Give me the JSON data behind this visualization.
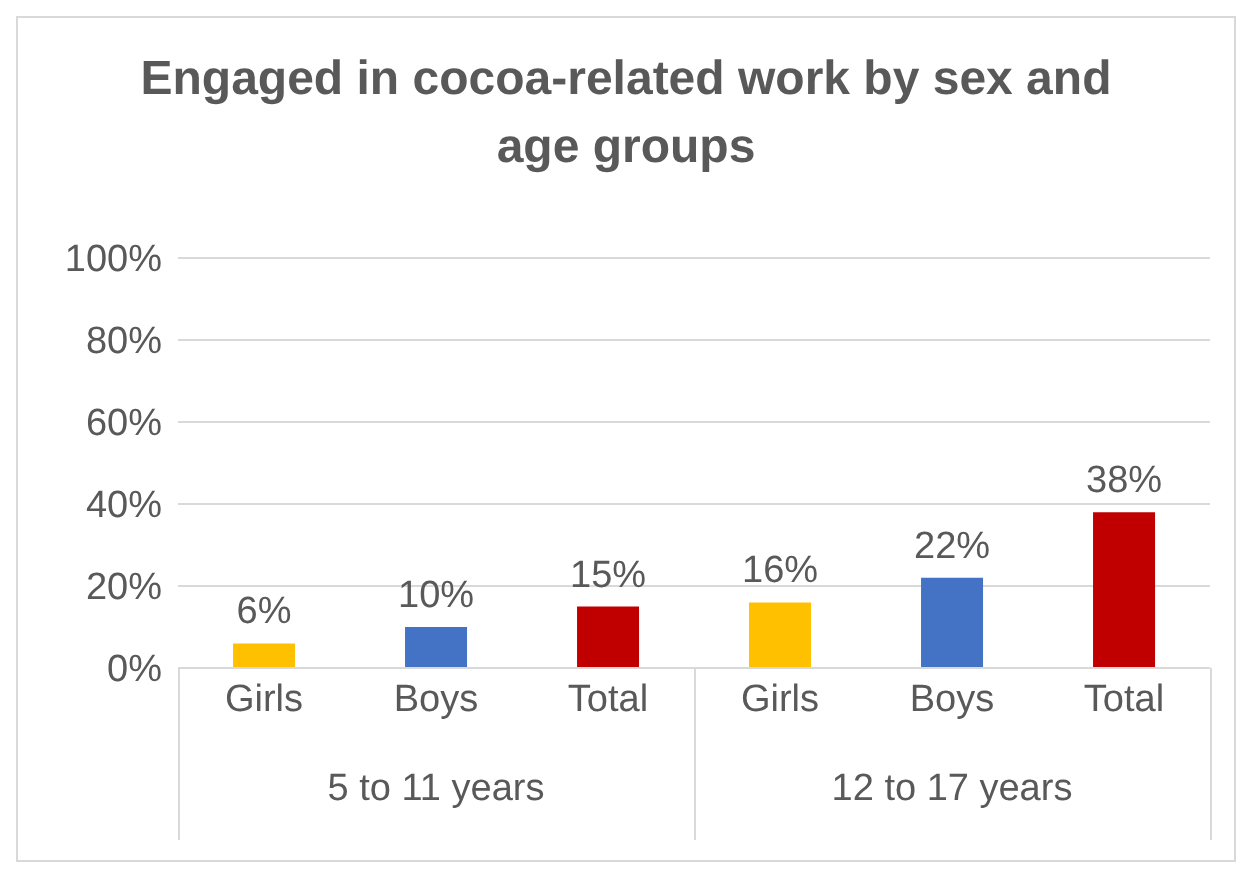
{
  "chart_data": {
    "type": "bar",
    "title": "Engaged in cocoa-related work by sex and age groups",
    "categories": [
      "Girls",
      "Boys",
      "Total",
      "Girls",
      "Boys",
      "Total"
    ],
    "values": [
      6,
      10,
      15,
      16,
      22,
      38
    ],
    "colors": [
      "#ffc000",
      "#4472c4",
      "#c00000",
      "#ffc000",
      "#4472c4",
      "#c00000"
    ],
    "value_labels": [
      "6%",
      "10%",
      "15%",
      "16%",
      "22%",
      "38%"
    ],
    "ylim": [
      0,
      100
    ],
    "yticks": [
      {
        "value": 0,
        "label": "0%"
      },
      {
        "value": 20,
        "label": "20%"
      },
      {
        "value": 40,
        "label": "40%"
      },
      {
        "value": 60,
        "label": "60%"
      },
      {
        "value": 80,
        "label": "80%"
      },
      {
        "value": 100,
        "label": "100%"
      }
    ],
    "grid": "y",
    "legend": false,
    "annotations": [
      "5 to 11 years",
      "12 to 17 years"
    ]
  }
}
